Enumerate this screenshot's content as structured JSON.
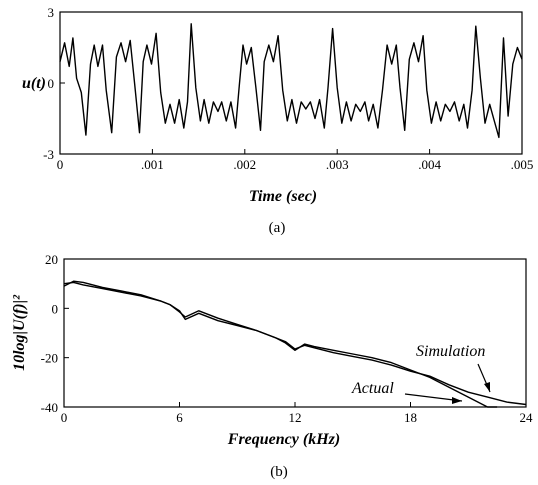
{
  "chart_data": [
    {
      "type": "line",
      "panel_label": "(a)",
      "xlabel": "Time (sec)",
      "ylabel": "u(t)",
      "xlim": [
        0,
        0.005
      ],
      "ylim": [
        -3,
        3
      ],
      "x_ticks": [
        0,
        0.001,
        0.002,
        0.003,
        0.004,
        0.005
      ],
      "x_tick_labels": [
        "0",
        ".001",
        ".002",
        ".003",
        ".004",
        ".005"
      ],
      "y_ticks": [
        -3,
        0,
        3
      ],
      "y_tick_labels": [
        "-3",
        "0",
        "3"
      ],
      "grid": false,
      "series": [
        {
          "x": [
            0,
            5e-05,
            0.0001,
            0.00014,
            0.00018,
            0.00023,
            0.00028,
            0.00033,
            0.00037,
            0.00041,
            0.00046,
            0.0005,
            0.00056,
            0.00061,
            0.00066,
            0.00071,
            0.00076,
            0.00081,
            0.00086,
            0.0009,
            0.00094,
            0.00099,
            0.00104,
            0.00109,
            0.00114,
            0.00119,
            0.00124,
            0.00129,
            0.00134,
            0.00138,
            0.00142,
            0.00147,
            0.00152,
            0.00156,
            0.00161,
            0.00166,
            0.00171,
            0.00175,
            0.0018,
            0.00185,
            0.0019,
            0.00194,
            0.00198,
            0.00202,
            0.00207,
            0.00212,
            0.00217,
            0.00221,
            0.00226,
            0.00231,
            0.00236,
            0.00241,
            0.00246,
            0.00251,
            0.00256,
            0.00261,
            0.00266,
            0.00271,
            0.00276,
            0.00281,
            0.00286,
            0.0029,
            0.00295,
            0.003,
            0.00305,
            0.0031,
            0.00315,
            0.0032,
            0.00325,
            0.0033,
            0.00334,
            0.00339,
            0.00344,
            0.00349,
            0.00354,
            0.00359,
            0.00364,
            0.00368,
            0.00373,
            0.00378,
            0.00383,
            0.00388,
            0.00393,
            0.00397,
            0.00402,
            0.00407,
            0.00412,
            0.00417,
            0.00422,
            0.00427,
            0.00432,
            0.00437,
            0.00441,
            0.00446,
            0.0045,
            0.00455,
            0.0046,
            0.00465,
            0.0047,
            0.00475,
            0.0048,
            0.00485,
            0.0049,
            0.00495,
            0.005
          ],
          "y": [
            0.9,
            1.7,
            0.7,
            1.9,
            0.2,
            -0.4,
            -2.2,
            0.8,
            1.6,
            0.7,
            1.6,
            -0.3,
            -2.1,
            1.1,
            1.7,
            0.9,
            1.8,
            -0.1,
            -2.1,
            0.9,
            1.6,
            0.8,
            2.1,
            -0.4,
            -1.7,
            -0.9,
            -1.7,
            -0.7,
            -1.9,
            -0.8,
            2.5,
            -0.2,
            -1.6,
            -0.7,
            -1.7,
            -0.8,
            -1.2,
            -0.8,
            -1.6,
            -0.8,
            -1.9,
            -0.1,
            1.6,
            0.8,
            1.5,
            -0.2,
            -2.0,
            0.9,
            1.6,
            0.9,
            2.0,
            -0.3,
            -1.6,
            -0.7,
            -1.7,
            -0.8,
            -1.1,
            -0.8,
            -1.5,
            -0.7,
            -1.9,
            -0.2,
            2.3,
            -0.2,
            -1.7,
            -0.8,
            -1.6,
            -0.9,
            -1.2,
            -0.8,
            -1.6,
            -0.9,
            -1.9,
            -0.3,
            1.6,
            0.8,
            1.6,
            -0.2,
            -2.0,
            1.0,
            1.7,
            0.9,
            2.0,
            -0.3,
            -1.7,
            -0.8,
            -1.6,
            -0.9,
            -1.2,
            -0.8,
            -1.6,
            -0.9,
            -1.9,
            -0.3,
            2.4,
            0.2,
            -1.7,
            -0.9,
            -1.6,
            -2.3,
            1.9,
            -1.4,
            0.8,
            1.5,
            1.0
          ]
        }
      ]
    },
    {
      "type": "line",
      "panel_label": "(b)",
      "xlabel": "Frequency (kHz)",
      "ylabel": "10log|U(f)|²",
      "xlim": [
        0,
        24
      ],
      "ylim": [
        -40,
        20
      ],
      "x_ticks": [
        0,
        6,
        12,
        18,
        24
      ],
      "x_tick_labels": [
        "0",
        "6",
        "12",
        "18",
        "24"
      ],
      "y_ticks": [
        -40,
        -20,
        0,
        20
      ],
      "y_tick_labels": [
        "-40",
        "-20",
        "0",
        "20"
      ],
      "grid": false,
      "series": [
        {
          "name": "Simulation",
          "x": [
            0,
            0.5,
            1,
            2,
            3,
            4,
            5,
            5.5,
            6,
            6.3,
            7,
            8,
            9,
            10,
            11,
            11.5,
            12,
            12.5,
            13,
            14,
            15,
            16,
            17,
            18,
            19,
            20,
            21,
            22,
            23,
            24
          ],
          "y": [
            10,
            10.5,
            9.5,
            8,
            6.5,
            5,
            3,
            1.5,
            -1,
            -4.5,
            -2,
            -5,
            -7,
            -9,
            -12,
            -13.5,
            -16.5,
            -15,
            -16,
            -18,
            -19.5,
            -21,
            -23,
            -25.5,
            -27.5,
            -31,
            -34,
            -36,
            -38,
            -39
          ]
        },
        {
          "name": "Actual",
          "x": [
            0,
            0.5,
            1,
            2,
            3,
            4,
            5,
            5.5,
            6,
            6.3,
            7,
            8,
            9,
            10,
            11,
            11.5,
            12,
            12.5,
            13,
            14,
            15,
            16,
            17,
            18,
            19,
            20,
            21,
            22,
            22.5
          ],
          "y": [
            9,
            11,
            10.5,
            8.5,
            7,
            5.5,
            3,
            1.5,
            -1.5,
            -3.5,
            -1,
            -4,
            -6.5,
            -9,
            -12,
            -14,
            -17,
            -14.5,
            -15.5,
            -17,
            -18.5,
            -20,
            -22,
            -25,
            -28,
            -32,
            -36,
            -40,
            -42
          ]
        }
      ],
      "annotations": [
        {
          "text": "Simulation",
          "target_series": "Simulation",
          "arrow": true
        },
        {
          "text": "Actual",
          "target_series": "Actual",
          "arrow": true
        }
      ]
    }
  ]
}
